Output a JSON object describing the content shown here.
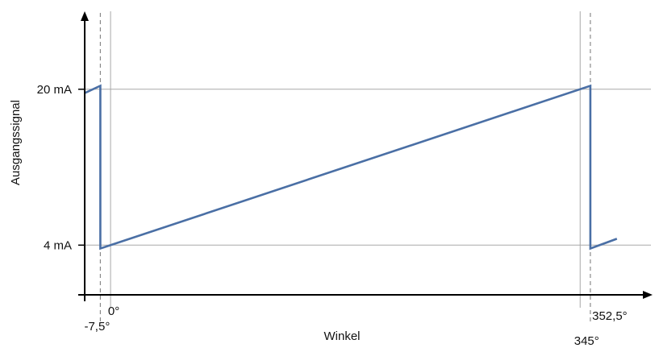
{
  "chart_data": {
    "type": "line",
    "title": "",
    "xlabel": "Winkel",
    "ylabel": "Ausgangssignal",
    "xlim": [
      -19,
      397
    ],
    "ylim": [
      -1.1,
      28
    ],
    "y_ticks": [
      {
        "value": 4,
        "label": "4 mA"
      },
      {
        "value": 20,
        "label": "20 mA"
      }
    ],
    "x_ticks": [
      {
        "value": -7.5,
        "label": "-7,5°"
      },
      {
        "value": 0,
        "label": "0°"
      },
      {
        "value": 345,
        "label": "345°"
      },
      {
        "value": 352.5,
        "label": "352,5°"
      }
    ],
    "grid_y": [
      4,
      20
    ],
    "grid_x": [
      0,
      345
    ],
    "dashed_x": [
      -7.5,
      352.5
    ],
    "series": [
      {
        "color": "#4a6fa5",
        "points": [
          {
            "x": -19,
            "y": 19.6
          },
          {
            "x": -7.5,
            "y": 20.35
          },
          {
            "x": -7.5,
            "y": 3.65
          },
          {
            "x": 352.5,
            "y": 20.35
          },
          {
            "x": 352.5,
            "y": 3.65
          },
          {
            "x": 372,
            "y": 4.65
          }
        ]
      }
    ],
    "colors": {
      "line": "#4a6fa5",
      "grid": "#a8a8a8",
      "axis": "#000000",
      "dashed": "#8a8a8a"
    }
  }
}
